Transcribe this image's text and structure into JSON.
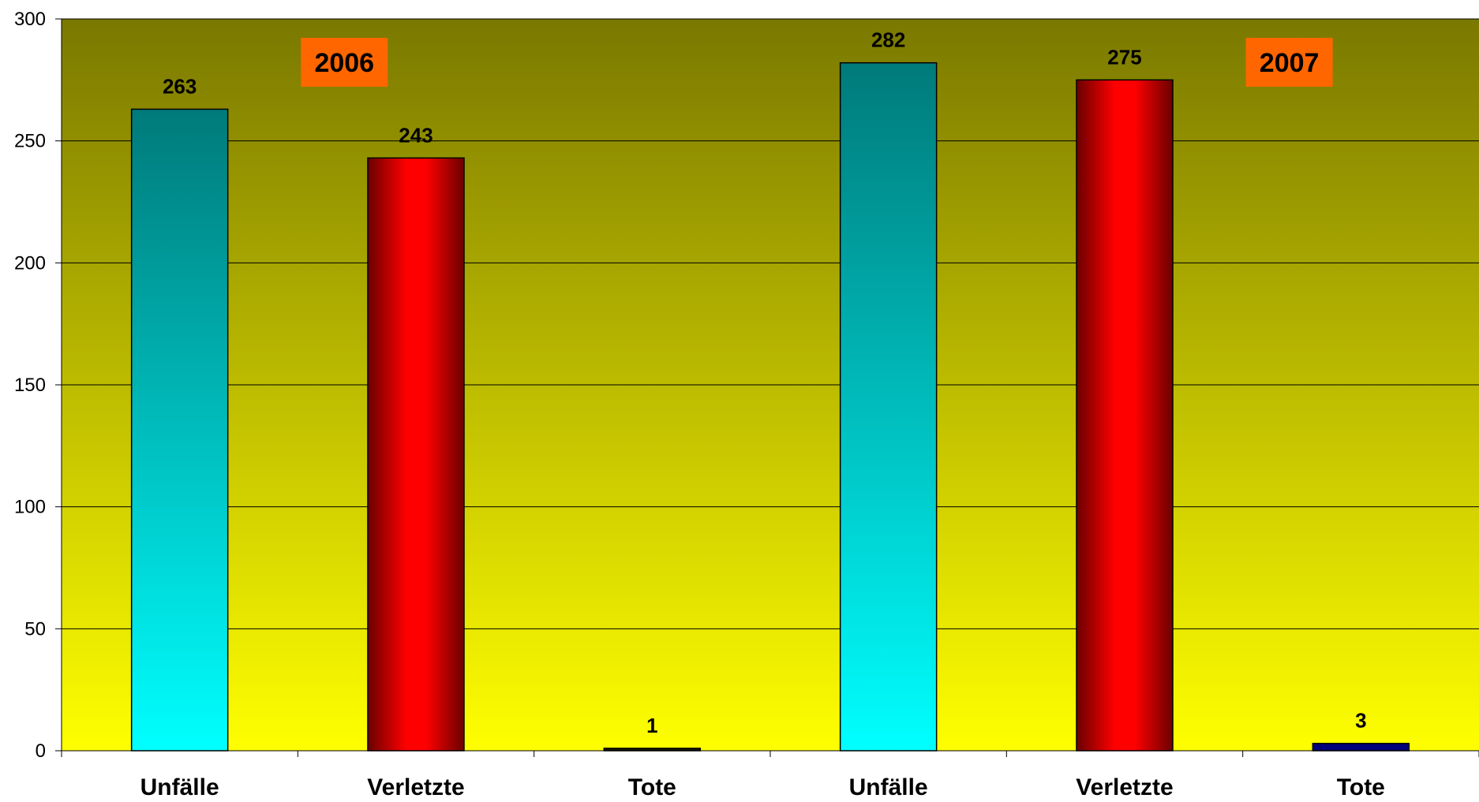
{
  "chart_data": {
    "type": "bar",
    "categories": [
      "Unfälle",
      "Verletzte",
      "Tote",
      "Unfälle",
      "Verletzte",
      "Tote"
    ],
    "values": [
      263,
      243,
      1,
      282,
      275,
      3
    ],
    "bar_styles": [
      "teal",
      "red",
      "dark",
      "teal",
      "red",
      "navy"
    ],
    "ylim": [
      0,
      300
    ],
    "yticks": [
      0,
      50,
      100,
      150,
      200,
      250,
      300
    ],
    "grid": true,
    "title": "",
    "xlabel": "",
    "ylabel": "",
    "annotations": [
      {
        "text": "2006",
        "after_category_index": 0
      },
      {
        "text": "2007",
        "after_category_index": 4
      }
    ]
  },
  "colors": {
    "plot_top": "#7a7800",
    "plot_bottom": "#ffff00",
    "teal_top": "#007a7a",
    "teal_bottom": "#00ffff",
    "red_edge": "#6a0000",
    "red_center": "#ff0000",
    "navy": "#00007a",
    "dark": "#1a1a00",
    "annotation_box": "#ff6600",
    "grid": "#000000"
  }
}
